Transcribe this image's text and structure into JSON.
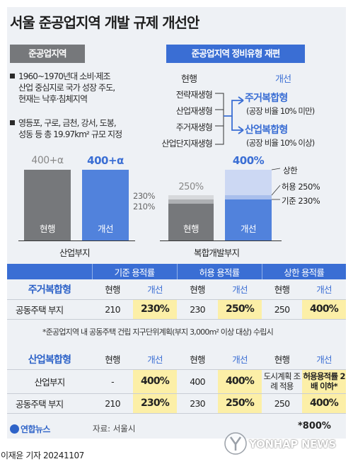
{
  "title": "서울 준공업지역 개발 규제 개선안",
  "left_tag": "준공업지역",
  "right_tag": "준공업지역 정비유형 재편",
  "bullets": {
    "b1_l1": "1960~1970년대 소비·제조",
    "b1_l2": "산업 중심지로 국가 성장 주도,",
    "b1_l3": "현재는 낙후·침체지역",
    "b2_l1": "영등포, 구로, 금천, 강서, 도봉,",
    "b2_l2": "성동 등 총 19.97km² 규모 지정"
  },
  "reform": {
    "current_label": "현행",
    "improved_label": "개선",
    "current_items": [
      "전략재생형",
      "산업재생형",
      "주거재생형",
      "산업단지재생형"
    ],
    "new_types": [
      {
        "name": "주거복합형",
        "desc": "(공장 비율 10% 미만)"
      },
      {
        "name": "산업복합형",
        "desc": "(공장 비율 10% 이상)"
      }
    ]
  },
  "chart_data": {
    "type": "bar",
    "groups": [
      {
        "name": "산업부지",
        "bars": [
          {
            "label": "현행",
            "value": 400,
            "display": "400+α"
          },
          {
            "label": "개선",
            "value": 400,
            "display": "400+α"
          }
        ]
      },
      {
        "name": "복합개발부지",
        "bars": [
          {
            "label": "현행",
            "base": 210,
            "allowed": 230,
            "display": "250%",
            "markers": [
              "230%",
              "210%"
            ]
          },
          {
            "label": "개선",
            "base": 230,
            "allowed": 250,
            "cap": 400,
            "display": "400%",
            "markers": [
              "상한",
              "허용 250%",
              "기준 230%"
            ]
          }
        ]
      }
    ]
  },
  "table": {
    "header": [
      "기준 용적률",
      "허용 용적률",
      "상한 용적률"
    ],
    "residential": {
      "title": "주거복합형",
      "sub": [
        "현행",
        "개선",
        "현행",
        "개선",
        "현행",
        "개선"
      ],
      "row_label": "공동주택 부지",
      "row": [
        "210",
        "230%",
        "230",
        "250%",
        "250",
        "400%"
      ]
    },
    "note": "*준공업지역 내 공동주택 건립 지구단위계획(부지 3,000m² 이상 대상) 수립시",
    "industrial": {
      "title": "산업복합형",
      "sub": [
        "현행",
        "개선",
        "현행",
        "개선",
        "현행",
        "개선"
      ],
      "row1_label": "산업부지",
      "row1": [
        "-",
        "400%",
        "400",
        "400%"
      ],
      "row1_cap_cur": "도시계획 조례 적용",
      "row1_cap_new": "허용용적률 2배 이하*",
      "row2_label": "공동주택 부지",
      "row2": [
        "210",
        "230%",
        "230",
        "250%",
        "250",
        "400%"
      ]
    }
  },
  "footer": {
    "logo": "연합뉴스",
    "source": "자료: 서울시",
    "footnote": "*800%",
    "credit": "이재윤 기자 20241107",
    "watermark": "YONHAP NEWS"
  },
  "colors": {
    "blue": "#3a6ed4",
    "gray": "#76787b",
    "highlight": "#fcefa7",
    "background": "#eef1f5"
  }
}
